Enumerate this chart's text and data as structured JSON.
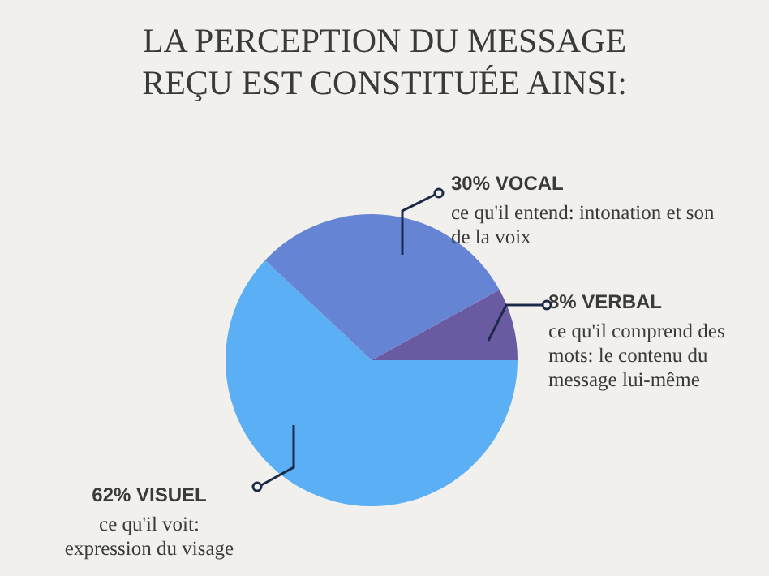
{
  "chart_data": {
    "type": "pie",
    "title": "LA PERCEPTION DU MESSAGE REÇU EST CONSTITUÉE AINSI:",
    "categories": [
      "VISUEL",
      "VOCAL",
      "VERBAL"
    ],
    "values": [
      62,
      30,
      8
    ],
    "value_labels": [
      "62%",
      "30%",
      "8%"
    ],
    "colors": [
      "#5aaff5",
      "#6585d4",
      "#6a5aa2"
    ],
    "annotations": [
      "ce qu'il voit: expression du visage",
      "ce qu'il entend: intonation et son de la voix",
      "ce qu'il comprend des mots: le contenu du message lui-même"
    ],
    "legend": false
  }
}
